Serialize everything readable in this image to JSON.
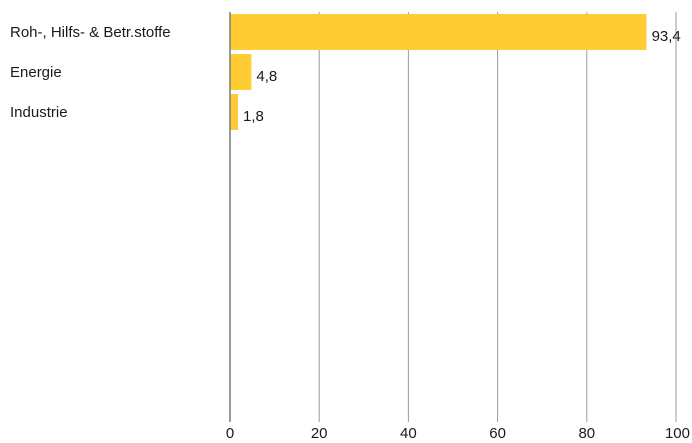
{
  "chart_data": {
    "type": "bar",
    "orientation": "horizontal",
    "title": "",
    "xlabel": "",
    "ylabel": "",
    "categories": [
      "Roh-, Hilfs- & Betr.stoffe",
      "Energie",
      "Industrie"
    ],
    "values": [
      93.4,
      4.8,
      1.8
    ],
    "value_labels": [
      "93,4",
      "4,8",
      "1,8"
    ],
    "xlim": [
      0,
      100
    ],
    "x_ticks": [
      0,
      20,
      40,
      60,
      80,
      100
    ],
    "x_tick_labels": [
      "0",
      "20",
      "40",
      "60",
      "80",
      "100"
    ],
    "grid": "vertical",
    "legend": "none",
    "bar_color": "#FFCC33"
  }
}
